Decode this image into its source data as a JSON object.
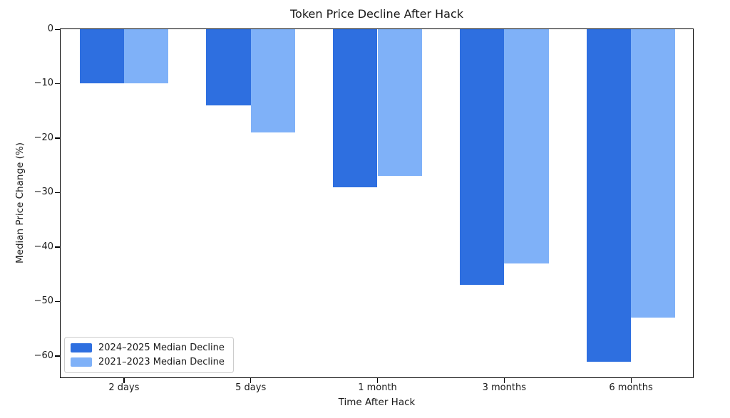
{
  "chart_data": {
    "type": "bar",
    "title": "Token Price Decline After Hack",
    "xlabel": "Time After Hack",
    "ylabel": "Median Price Change (%)",
    "categories": [
      "2 days",
      "5 days",
      "1 month",
      "3 months",
      "6 months"
    ],
    "series": [
      {
        "name": "2024–2025 Median Decline",
        "color": "#2e6fe0",
        "values": [
          -10,
          -14,
          -29,
          -47,
          -61
        ]
      },
      {
        "name": "2021–2023 Median Decline",
        "color": "#7fb1f8",
        "values": [
          -10,
          -19,
          -27,
          -43,
          -53
        ]
      }
    ],
    "ylim": [
      -64.2,
      0
    ],
    "yticks": [
      0,
      -10,
      -20,
      -30,
      -40,
      -50,
      -60
    ],
    "ytick_labels": [
      "0",
      "−10",
      "−20",
      "−30",
      "−40",
      "−50",
      "−60"
    ],
    "bar_width_fraction": 0.35,
    "grid": false,
    "legend_position": "lower left"
  }
}
